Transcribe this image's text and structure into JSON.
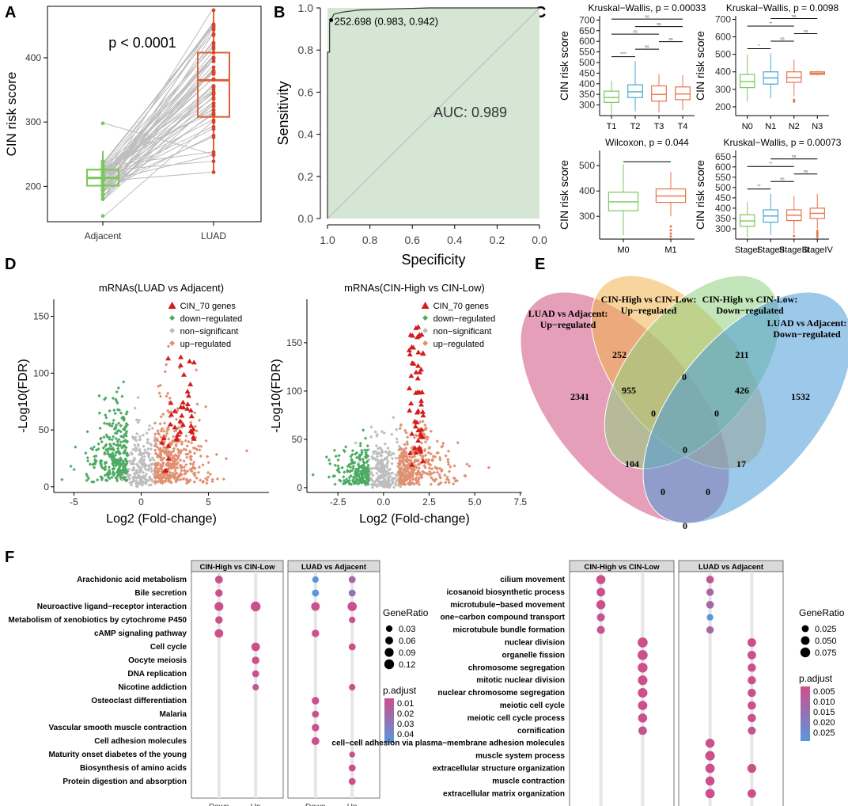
{
  "panel_labels": {
    "A": "A",
    "B": "B",
    "C": "C",
    "D": "D",
    "E": "E",
    "F": "F"
  },
  "colors": {
    "green": "#7dc75a",
    "orange": "#d9633a",
    "grey": "#bdbdbd",
    "venn_pink": "#d0507d",
    "venn_orange": "#f3b24a",
    "venn_green": "#8fcf80",
    "venn_blue": "#4a9ad8",
    "roc_fill": "#d5e6d5"
  },
  "chart_data": [
    {
      "id": "A",
      "type": "box",
      "ylabel": "CIN risk score",
      "categories": [
        "Adjacent",
        "LUAD"
      ],
      "yticks": [
        200,
        300,
        400
      ],
      "ylim": [
        145,
        480
      ],
      "annotation": "p < 0.0001",
      "boxes": [
        {
          "name": "Adjacent",
          "q1": 201,
          "median": 213,
          "q3": 226,
          "whisker_low": 177,
          "whisker_high": 255,
          "outliers": [
            154,
            298
          ]
        },
        {
          "name": "LUAD",
          "q1": 308,
          "median": 365,
          "q3": 408,
          "whisker_low": 222,
          "whisker_high": 474
        }
      ]
    },
    {
      "id": "B",
      "type": "line",
      "xlabel": "Specificity",
      "ylabel": "Sensitivity",
      "xticks": [
        "1.0",
        "0.8",
        "0.6",
        "0.4",
        "0.2",
        "0.0"
      ],
      "yticks": [
        "0.0",
        "0.2",
        "0.4",
        "0.6",
        "0.8",
        "1.0"
      ],
      "auc_label": "AUC: 0.989",
      "threshold_label": "252.698 (0.983, 0.942)",
      "threshold": {
        "specificity": 0.983,
        "sensitivity": 0.942
      },
      "roc_points": [
        [
          1.0,
          0.0
        ],
        [
          1.0,
          0.79
        ],
        [
          0.99,
          0.79
        ],
        [
          0.99,
          0.93
        ],
        [
          0.983,
          0.942
        ],
        [
          0.97,
          0.97
        ],
        [
          0.93,
          0.98
        ],
        [
          0.85,
          0.99
        ],
        [
          0.7,
          0.995
        ],
        [
          0.52,
          1.0
        ],
        [
          0.0,
          1.0
        ]
      ]
    },
    {
      "id": "C1",
      "type": "box",
      "title": "Kruskal−Wallis, p = 0.00033",
      "ylabel": "CIN risk score",
      "categories": [
        "T1",
        "T2",
        "T3",
        "T4"
      ],
      "yticks": [
        300,
        350,
        400,
        450,
        500,
        550,
        600,
        650,
        700
      ],
      "ylim": [
        250,
        720
      ],
      "colors": [
        "#7dc75a",
        "#4aa7cf",
        "#e8734a",
        "#e8734a"
      ],
      "boxes": [
        {
          "q1": 312,
          "median": 335,
          "q3": 365,
          "lo": 250,
          "hi": 415
        },
        {
          "q1": 335,
          "median": 362,
          "q3": 395,
          "lo": 270,
          "hi": 505
        },
        {
          "q1": 318,
          "median": 350,
          "q3": 390,
          "lo": 265,
          "hi": 445
        },
        {
          "q1": 325,
          "median": 352,
          "q3": 385,
          "lo": 275,
          "hi": 440
        }
      ],
      "sig": [
        "****",
        "ns",
        "ns",
        "ns",
        "ns",
        "ns"
      ]
    },
    {
      "id": "C2",
      "type": "box",
      "title": "Kruskal−Wallis, p = 0.0098",
      "ylabel": "CIN risk score",
      "categories": [
        "N0",
        "N1",
        "N2",
        "N3"
      ],
      "yticks": [
        200,
        300,
        400,
        500,
        600,
        700
      ],
      "ylim": [
        150,
        720
      ],
      "colors": [
        "#7dc75a",
        "#4aa7cf",
        "#e8734a",
        "#e8734a"
      ],
      "boxes": [
        {
          "q1": 310,
          "median": 345,
          "q3": 385,
          "lo": 230,
          "hi": 500
        },
        {
          "q1": 330,
          "median": 365,
          "q3": 400,
          "lo": 250,
          "hi": 505
        },
        {
          "q1": 340,
          "median": 368,
          "q3": 400,
          "lo": 260,
          "hi": 470,
          "outliers": [
            230,
            240
          ]
        },
        {
          "q1": 385,
          "median": 392,
          "q3": 400,
          "lo": 380,
          "hi": 405
        }
      ],
      "sig": [
        "*",
        "**",
        "ns",
        "ns",
        "ns",
        "ns"
      ]
    },
    {
      "id": "C3",
      "type": "box",
      "title": "Wilcoxon, p = 0.044",
      "ylabel": "CIN risk score",
      "categories": [
        "M0",
        "M1"
      ],
      "yticks": [
        300,
        400,
        500
      ],
      "ylim": [
        210,
        560
      ],
      "colors": [
        "#7dc75a",
        "#e8734a"
      ],
      "boxes": [
        {
          "q1": 322,
          "median": 357,
          "q3": 395,
          "lo": 225,
          "hi": 505
        },
        {
          "q1": 355,
          "median": 380,
          "q3": 408,
          "lo": 300,
          "hi": 475,
          "outliers": [
            220,
            232,
            245,
            260
          ]
        }
      ],
      "sig": []
    },
    {
      "id": "C4",
      "type": "box",
      "title": "Kruskal−Wallis, p = 0.00073",
      "ylabel": "CIN risk score",
      "categories": [
        "StageI",
        "StageII",
        "StageIII",
        "StageIV"
      ],
      "yticks": [
        300,
        350,
        400,
        450,
        500,
        550,
        600,
        650
      ],
      "ylim": [
        250,
        680
      ],
      "colors": [
        "#7dc75a",
        "#4aa7cf",
        "#e8734a",
        "#e8734a"
      ],
      "boxes": [
        {
          "q1": 312,
          "median": 338,
          "q3": 368,
          "lo": 260,
          "hi": 430
        },
        {
          "q1": 332,
          "median": 362,
          "q3": 392,
          "lo": 270,
          "hi": 470
        },
        {
          "q1": 340,
          "median": 366,
          "q3": 392,
          "lo": 275,
          "hi": 460,
          "outliers": [
            265
          ]
        },
        {
          "q1": 350,
          "median": 375,
          "q3": 400,
          "lo": 300,
          "hi": 470,
          "outliers": [
            260,
            270,
            280,
            290
          ]
        }
      ],
      "sig": [
        "**",
        "**",
        "ns",
        "ns",
        "ns",
        "ns"
      ]
    },
    {
      "id": "D1",
      "type": "scatter",
      "title": "mRNAs(LUAD vs Adjacent)",
      "xlabel": "Log2 (Fold-change)",
      "ylabel": "-Log10(FDR)",
      "xticks": [
        -5,
        0,
        5
      ],
      "yticks": [
        0,
        50,
        100,
        150
      ],
      "xlim": [
        -6.5,
        9.5
      ],
      "ylim": [
        -5,
        165
      ],
      "legend": [
        "CIN_70 genes",
        "down−regulated",
        "non−significant",
        "up−regulated"
      ]
    },
    {
      "id": "D2",
      "type": "scatter",
      "title": "mRNAs(CIN-High vs CIN-Low)",
      "xlabel": "Log2 (Fold-change)",
      "ylabel": "-Log10(FDR)",
      "xticks": [
        -2.5,
        0.0,
        2.5,
        5.0,
        7.5
      ],
      "yticks": [
        0,
        50,
        100,
        150
      ],
      "xlim": [
        -4.2,
        7.6
      ],
      "ylim": [
        -5,
        195
      ],
      "legend": [
        "CIN_70 genes",
        "down−regulated",
        "non−significant",
        "up−regulated"
      ]
    },
    {
      "id": "E",
      "type": "venn",
      "sets": [
        "LUAD vs Adjacent:\nUp−regulated",
        "CIN-High vs CIN-Low:\nUp−regulated",
        "CIN-High vs CIN-Low:\nDown−regulated",
        "LUAD vs Adjacent:\nDown−regulated"
      ],
      "set_labels": [
        [
          "LUAD vs Adjacent:",
          "Up−regulated"
        ],
        [
          "CIN-High vs CIN-Low:",
          "Up−regulated"
        ],
        [
          "CIN-High vs CIN-Low:",
          "Down−regulated"
        ],
        [
          "LUAD vs Adjacent:",
          "Down−regulated"
        ]
      ],
      "counts": {
        "A": "2341",
        "B": "252",
        "C": "211",
        "D": "1532",
        "AB": "955",
        "BC": "0",
        "CD": "426",
        "AC": "0",
        "BD": "0",
        "ABC": "0",
        "BCD": "0",
        "ABCD": "0",
        "AD": "0",
        "ACD": "17",
        "ABD": "0",
        "AD_bottom": "0",
        "ABD_left": "104"
      }
    },
    {
      "id": "F1",
      "type": "dot",
      "facets": [
        "CIN-High vs CIN-Low",
        "LUAD vs Adjacent"
      ],
      "x_categories": [
        "Down",
        "Up"
      ],
      "terms": [
        "Arachidonic acid metabolism",
        "Bile secretion",
        "Neuroactive ligand−receptor interaction",
        "Metabolism of xenobiotics by cytochrome P450",
        "cAMP signaling pathway",
        "Cell cycle",
        "Oocyte meiosis",
        "DNA replication",
        "Nicotine addiction",
        "Osteoclast differentiation",
        "Malaria",
        "Vascular smooth muscle contraction",
        "Cell adhesion molecules",
        "Maturity onset diabetes of the young",
        "Biosynthesis of amino acids",
        "Protein digestion and absorption"
      ],
      "points": [
        {
          "facet": 0,
          "x": "Down",
          "term": 0,
          "ratio": 0.06,
          "padj": 0.01
        },
        {
          "facet": 0,
          "x": "Down",
          "term": 1,
          "ratio": 0.05,
          "padj": 0.01
        },
        {
          "facet": 0,
          "x": "Down",
          "term": 2,
          "ratio": 0.09,
          "padj": 0.01
        },
        {
          "facet": 0,
          "x": "Down",
          "term": 3,
          "ratio": 0.05,
          "padj": 0.01
        },
        {
          "facet": 0,
          "x": "Down",
          "term": 4,
          "ratio": 0.08,
          "padj": 0.01
        },
        {
          "facet": 0,
          "x": "Up",
          "term": 2,
          "ratio": 0.12,
          "padj": 0.01
        },
        {
          "facet": 0,
          "x": "Up",
          "term": 5,
          "ratio": 0.08,
          "padj": 0.01
        },
        {
          "facet": 0,
          "x": "Up",
          "term": 6,
          "ratio": 0.05,
          "padj": 0.01
        },
        {
          "facet": 0,
          "x": "Up",
          "term": 7,
          "ratio": 0.04,
          "padj": 0.01
        },
        {
          "facet": 0,
          "x": "Up",
          "term": 8,
          "ratio": 0.03,
          "padj": 0.015
        },
        {
          "facet": 1,
          "x": "Down",
          "term": 0,
          "ratio": 0.03,
          "padj": 0.04
        },
        {
          "facet": 1,
          "x": "Down",
          "term": 1,
          "ratio": 0.04,
          "padj": 0.04
        },
        {
          "facet": 1,
          "x": "Down",
          "term": 2,
          "ratio": 0.08,
          "padj": 0.01
        },
        {
          "facet": 1,
          "x": "Down",
          "term": 4,
          "ratio": 0.05,
          "padj": 0.01
        },
        {
          "facet": 1,
          "x": "Down",
          "term": 9,
          "ratio": 0.05,
          "padj": 0.01
        },
        {
          "facet": 1,
          "x": "Down",
          "term": 10,
          "ratio": 0.04,
          "padj": 0.01
        },
        {
          "facet": 1,
          "x": "Down",
          "term": 11,
          "ratio": 0.05,
          "padj": 0.01
        },
        {
          "facet": 1,
          "x": "Down",
          "term": 12,
          "ratio": 0.06,
          "padj": 0.01
        },
        {
          "facet": 1,
          "x": "Up",
          "term": 0,
          "ratio": 0.04,
          "padj": 0.02
        },
        {
          "facet": 1,
          "x": "Up",
          "term": 1,
          "ratio": 0.04,
          "padj": 0.025
        },
        {
          "facet": 1,
          "x": "Up",
          "term": 2,
          "ratio": 0.1,
          "padj": 0.01
        },
        {
          "facet": 1,
          "x": "Up",
          "term": 3,
          "ratio": 0.03,
          "padj": 0.01
        },
        {
          "facet": 1,
          "x": "Up",
          "term": 5,
          "ratio": 0.04,
          "padj": 0.01
        },
        {
          "facet": 1,
          "x": "Up",
          "term": 8,
          "ratio": 0.03,
          "padj": 0.01
        },
        {
          "facet": 1,
          "x": "Up",
          "term": 13,
          "ratio": 0.02,
          "padj": 0.01
        },
        {
          "facet": 1,
          "x": "Up",
          "term": 14,
          "ratio": 0.04,
          "padj": 0.01
        },
        {
          "facet": 1,
          "x": "Up",
          "term": 15,
          "ratio": 0.04,
          "padj": 0.01
        }
      ],
      "legend_size_title": "GeneRatio",
      "legend_size": [
        "0.03",
        "0.06",
        "0.09",
        "0.12"
      ],
      "legend_color_title": "p.adjust",
      "legend_color": [
        "0.01",
        "0.02",
        "0.03",
        "0.04"
      ]
    },
    {
      "id": "F2",
      "type": "dot",
      "facets": [
        "CIN-High vs CIN-Low",
        "LUAD vs Adjacent"
      ],
      "x_categories": [
        "Down",
        "Up"
      ],
      "terms": [
        "cilium movement",
        "icosanoid biosynthetic process",
        "microtubule−based movement",
        "one−carbon compound transport",
        "microtubule bundle formation",
        "nuclear division",
        "organelle fission",
        "chromosome segregation",
        "mitotic nuclear division",
        "nuclear chromosome segregation",
        "meiotic cell cycle",
        "meiotic cell cycle process",
        "cornification",
        "cell−cell adhesion via plasma−membrane adhesion molecules",
        "muscle system process",
        "extracellular structure organization",
        "muscle contraction",
        "extracellular matrix organization"
      ],
      "points": [
        {
          "facet": 0,
          "x": "Down",
          "term": 0,
          "ratio": 0.06,
          "padj": 0.003
        },
        {
          "facet": 0,
          "x": "Down",
          "term": 1,
          "ratio": 0.05,
          "padj": 0.003
        },
        {
          "facet": 0,
          "x": "Down",
          "term": 2,
          "ratio": 0.06,
          "padj": 0.003
        },
        {
          "facet": 0,
          "x": "Down",
          "term": 3,
          "ratio": 0.04,
          "padj": 0.005
        },
        {
          "facet": 0,
          "x": "Down",
          "term": 4,
          "ratio": 0.04,
          "padj": 0.005
        },
        {
          "facet": 0,
          "x": "Up",
          "term": 5,
          "ratio": 0.08,
          "padj": 0.003
        },
        {
          "facet": 0,
          "x": "Up",
          "term": 6,
          "ratio": 0.08,
          "padj": 0.003
        },
        {
          "facet": 0,
          "x": "Up",
          "term": 7,
          "ratio": 0.075,
          "padj": 0.003
        },
        {
          "facet": 0,
          "x": "Up",
          "term": 8,
          "ratio": 0.07,
          "padj": 0.003
        },
        {
          "facet": 0,
          "x": "Up",
          "term": 9,
          "ratio": 0.07,
          "padj": 0.003
        },
        {
          "facet": 0,
          "x": "Up",
          "term": 10,
          "ratio": 0.065,
          "padj": 0.003
        },
        {
          "facet": 0,
          "x": "Up",
          "term": 11,
          "ratio": 0.06,
          "padj": 0.003
        },
        {
          "facet": 0,
          "x": "Up",
          "term": 12,
          "ratio": 0.05,
          "padj": 0.005
        },
        {
          "facet": 1,
          "x": "Down",
          "term": 0,
          "ratio": 0.035,
          "padj": 0.005
        },
        {
          "facet": 1,
          "x": "Down",
          "term": 1,
          "ratio": 0.03,
          "padj": 0.01
        },
        {
          "facet": 1,
          "x": "Down",
          "term": 2,
          "ratio": 0.035,
          "padj": 0.01
        },
        {
          "facet": 1,
          "x": "Down",
          "term": 3,
          "ratio": 0.02,
          "padj": 0.025
        },
        {
          "facet": 1,
          "x": "Down",
          "term": 4,
          "ratio": 0.03,
          "padj": 0.01
        },
        {
          "facet": 1,
          "x": "Down",
          "term": 13,
          "ratio": 0.06,
          "padj": 0.003
        },
        {
          "facet": 1,
          "x": "Down",
          "term": 14,
          "ratio": 0.07,
          "padj": 0.003
        },
        {
          "facet": 1,
          "x": "Down",
          "term": 15,
          "ratio": 0.065,
          "padj": 0.003
        },
        {
          "facet": 1,
          "x": "Down",
          "term": 16,
          "ratio": 0.06,
          "padj": 0.003
        },
        {
          "facet": 1,
          "x": "Down",
          "term": 17,
          "ratio": 0.065,
          "padj": 0.003
        },
        {
          "facet": 1,
          "x": "Up",
          "term": 5,
          "ratio": 0.05,
          "padj": 0.003
        },
        {
          "facet": 1,
          "x": "Up",
          "term": 6,
          "ratio": 0.05,
          "padj": 0.003
        },
        {
          "facet": 1,
          "x": "Up",
          "term": 7,
          "ratio": 0.045,
          "padj": 0.003
        },
        {
          "facet": 1,
          "x": "Up",
          "term": 8,
          "ratio": 0.045,
          "padj": 0.003
        },
        {
          "facet": 1,
          "x": "Up",
          "term": 9,
          "ratio": 0.045,
          "padj": 0.003
        },
        {
          "facet": 1,
          "x": "Up",
          "term": 10,
          "ratio": 0.045,
          "padj": 0.003
        },
        {
          "facet": 1,
          "x": "Up",
          "term": 11,
          "ratio": 0.045,
          "padj": 0.003
        },
        {
          "facet": 1,
          "x": "Up",
          "term": 12,
          "ratio": 0.04,
          "padj": 0.005
        },
        {
          "facet": 1,
          "x": "Up",
          "term": 15,
          "ratio": 0.055,
          "padj": 0.003
        },
        {
          "facet": 1,
          "x": "Up",
          "term": 17,
          "ratio": 0.05,
          "padj": 0.003
        }
      ],
      "legend_size_title": "GeneRatio",
      "legend_size": [
        "0.025",
        "0.050",
        "0.075"
      ],
      "legend_color_title": "p.adjust",
      "legend_color": [
        "0.005",
        "0.010",
        "0.015",
        "0.020",
        "0.025"
      ]
    }
  ]
}
